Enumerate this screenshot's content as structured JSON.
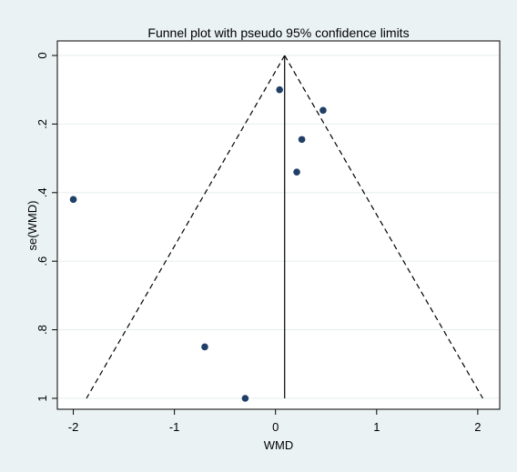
{
  "chart_data": {
    "type": "scatter",
    "title": "Funnel plot with pseudo 95% confidence limits",
    "xlabel": "WMD",
    "ylabel": "se(WMD)",
    "xlim": [
      -2.05,
      2.1
    ],
    "ylim": [
      0,
      1.0
    ],
    "y_reversed": true,
    "x_ticks": [
      -2,
      -1,
      0,
      1,
      2
    ],
    "x_tick_labels": [
      "-2",
      "-1",
      "0",
      "1",
      "2"
    ],
    "y_ticks": [
      0,
      0.2,
      0.4,
      0.6,
      0.8,
      1.0
    ],
    "y_tick_labels": [
      "0",
      ".2",
      ".4",
      ".6",
      ".8",
      "1"
    ],
    "grid": "horizontal",
    "pooled_estimate": 0.09,
    "funnel_max_se": 1.0,
    "funnel_bounds_at_max_se": [
      -1.87,
      2.05
    ],
    "points": [
      {
        "x": 0.04,
        "y": 0.1
      },
      {
        "x": 0.47,
        "y": 0.16
      },
      {
        "x": 0.26,
        "y": 0.245
      },
      {
        "x": 0.21,
        "y": 0.34
      },
      {
        "x": -2.0,
        "y": 0.42
      },
      {
        "x": -0.7,
        "y": 0.85
      },
      {
        "x": -0.3,
        "y": 1.0
      }
    ],
    "colors": {
      "point": "#1f3f66",
      "background": "#eaf2f3",
      "plot_bg": "#ffffff",
      "grid": "#e6eeee"
    }
  }
}
